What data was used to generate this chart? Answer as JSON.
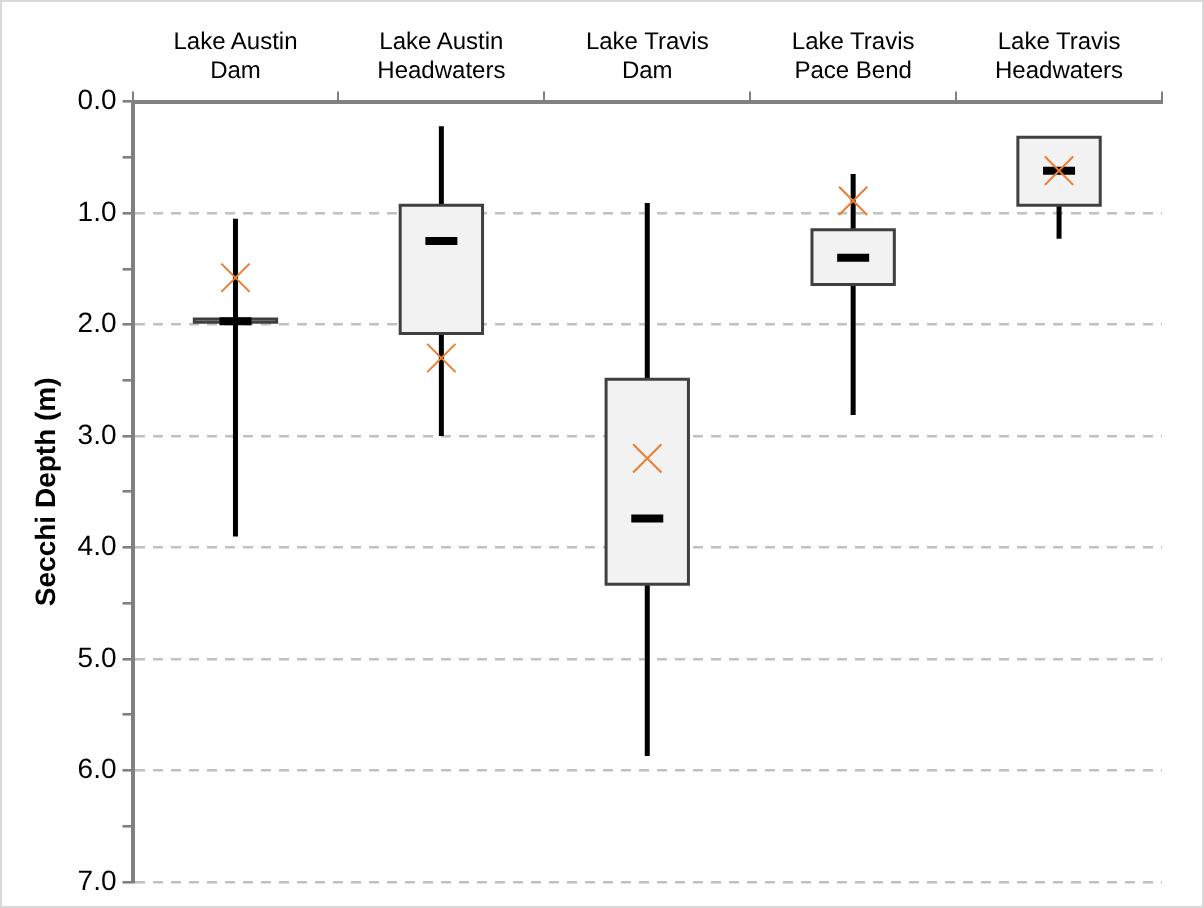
{
  "chart_data": {
    "type": "box",
    "ylabel": "Secchi Depth (m)",
    "categories": [
      "Lake Austin Dam",
      "Lake Austin Headwaters",
      "Lake Travis Dam",
      "Lake Travis Pace Bend",
      "Lake Travis Headwaters"
    ],
    "series": [
      {
        "color": "#f2f2f2",
        "boxes": [
          {
            "low": 1.05,
            "q1": 1.95,
            "median": 1.97,
            "q3": 1.98,
            "high": 3.9,
            "mean": 1.58
          },
          {
            "low": 0.22,
            "q1": 0.93,
            "median": 1.25,
            "q3": 2.08,
            "high": 3.0,
            "mean": 2.3
          },
          {
            "low": 0.91,
            "q1": 2.49,
            "median": 3.74,
            "q3": 4.33,
            "high": 5.87,
            "mean": 3.2
          },
          {
            "low": 0.65,
            "q1": 1.15,
            "median": 1.4,
            "q3": 1.64,
            "high": 2.81,
            "mean": 0.89
          },
          {
            "low": 0.32,
            "q1": 0.32,
            "median": 0.62,
            "q3": 0.93,
            "high": 1.23,
            "mean": 0.62
          }
        ]
      }
    ],
    "ylim": [
      7,
      0
    ],
    "yticks": [
      {
        "value": 0,
        "label": "0.0"
      },
      {
        "value": 0.5,
        "label": null
      },
      {
        "value": 1,
        "label": "1.0"
      },
      {
        "value": 1.5,
        "label": null
      },
      {
        "value": 2,
        "label": "2.0"
      },
      {
        "value": 2.5,
        "label": null
      },
      {
        "value": 3,
        "label": "3.0"
      },
      {
        "value": 3.5,
        "label": null
      },
      {
        "value": 4,
        "label": "4.0"
      },
      {
        "value": 4.5,
        "label": null
      },
      {
        "value": 5,
        "label": "5.0"
      },
      {
        "value": 5.5,
        "label": null
      },
      {
        "value": 6,
        "label": "6.0"
      },
      {
        "value": 6.5,
        "label": null
      },
      {
        "value": 7,
        "label": "7.0"
      }
    ],
    "grid": "y",
    "legend": false
  }
}
